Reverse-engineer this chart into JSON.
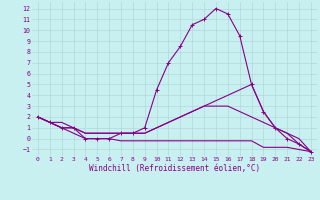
{
  "xlabel": "Windchill (Refroidissement éolien,°C)",
  "bg_color": "#c8f0f0",
  "grid_color": "#b0d8d8",
  "line_color": "#880088",
  "x_ticks": [
    0,
    1,
    2,
    3,
    4,
    5,
    6,
    7,
    8,
    9,
    10,
    11,
    12,
    13,
    14,
    15,
    16,
    17,
    18,
    19,
    20,
    21,
    22,
    23
  ],
  "y_ticks": [
    -1,
    0,
    1,
    2,
    3,
    4,
    5,
    6,
    7,
    8,
    9,
    10,
    11,
    12
  ],
  "xlim": [
    -0.5,
    23.5
  ],
  "ylim": [
    -1.6,
    12.6
  ],
  "lines": [
    {
      "x": [
        0,
        1,
        2,
        3,
        4,
        5,
        6,
        7,
        8,
        9,
        10,
        11,
        12,
        13,
        14,
        15,
        16,
        17,
        18,
        19,
        20,
        21,
        22,
        23
      ],
      "y": [
        2,
        1.5,
        1,
        1,
        0,
        0,
        0,
        0.5,
        0.5,
        1,
        4.5,
        7,
        8.5,
        10.5,
        11,
        12,
        11.5,
        9.5,
        5,
        2.5,
        1,
        0,
        -0.5,
        -1.2
      ],
      "marker": "+"
    },
    {
      "x": [
        0,
        1,
        2,
        3,
        4,
        5,
        6,
        7,
        8,
        9,
        10,
        11,
        12,
        13,
        14,
        15,
        16,
        17,
        18,
        19,
        20,
        21,
        22,
        23
      ],
      "y": [
        2,
        1.5,
        1.5,
        1,
        0.5,
        0.5,
        0.5,
        0.5,
        0.5,
        0.5,
        1,
        1.5,
        2,
        2.5,
        3,
        3.5,
        4,
        4.5,
        5,
        2.5,
        1,
        0.5,
        -0.5,
        -1.2
      ],
      "marker": null
    },
    {
      "x": [
        0,
        1,
        2,
        3,
        4,
        5,
        6,
        7,
        8,
        9,
        10,
        11,
        12,
        13,
        14,
        15,
        16,
        17,
        18,
        19,
        20,
        21,
        22,
        23
      ],
      "y": [
        2,
        1.5,
        1,
        0.5,
        0,
        0,
        0,
        -0.2,
        -0.2,
        -0.2,
        -0.2,
        -0.2,
        -0.2,
        -0.2,
        -0.2,
        -0.2,
        -0.2,
        -0.2,
        -0.2,
        -0.8,
        -0.8,
        -0.8,
        -1,
        -1.2
      ],
      "marker": null
    },
    {
      "x": [
        0,
        1,
        2,
        3,
        4,
        5,
        6,
        7,
        8,
        9,
        10,
        11,
        12,
        13,
        14,
        15,
        16,
        17,
        18,
        19,
        20,
        21,
        22,
        23
      ],
      "y": [
        2,
        1.5,
        1,
        1,
        0.5,
        0.5,
        0.5,
        0.5,
        0.5,
        0.5,
        1,
        1.5,
        2,
        2.5,
        3,
        3,
        3,
        2.5,
        2,
        1.5,
        1,
        0.5,
        0,
        -1.2
      ],
      "marker": null
    }
  ],
  "figsize": [
    3.2,
    2.0
  ],
  "dpi": 100,
  "xlabel_fontsize": 5.5,
  "tick_fontsize": 4.5,
  "linewidth": 0.8,
  "marker_size": 2.5
}
